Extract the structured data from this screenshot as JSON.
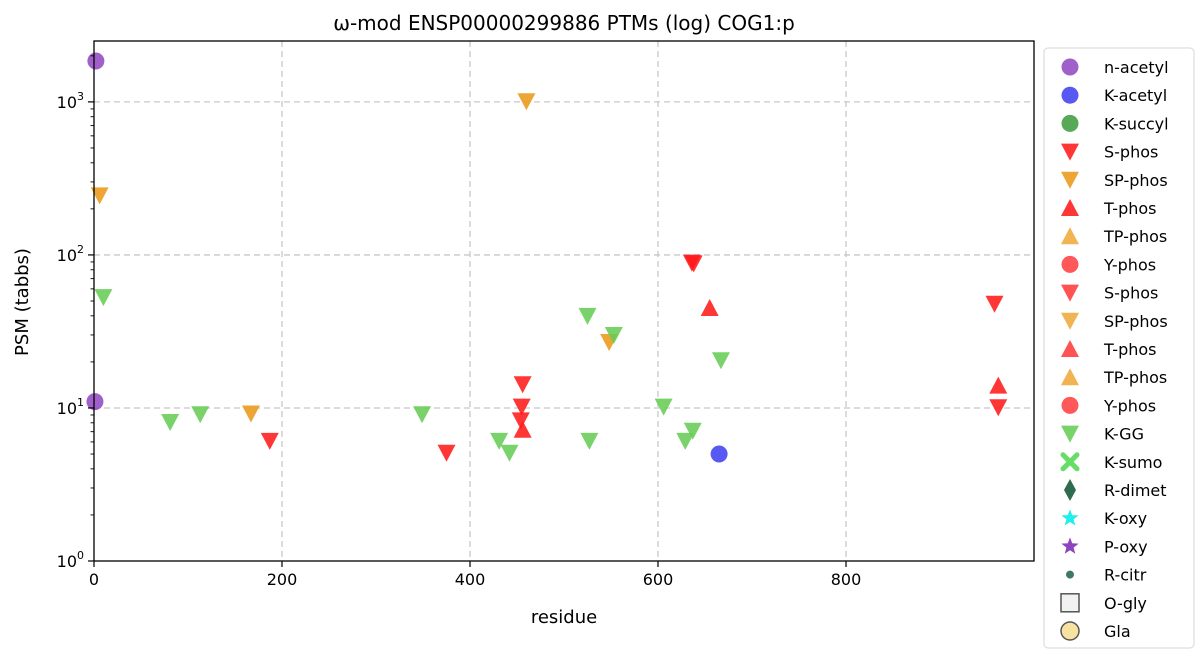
{
  "chart_data": {
    "type": "scatter",
    "title": "ω-mod ENSP00000299886 PTMs (log) COG1:p",
    "xlabel": "residue",
    "ylabel": "PSM (tabbs)",
    "xlim": [
      0,
      1000
    ],
    "ylim": [
      1,
      2500
    ],
    "yscale": "log",
    "grid": true,
    "legend_position": "outside-right",
    "x_ticks": [
      {
        "value": 0,
        "label": "0"
      },
      {
        "value": 200,
        "label": "200"
      },
      {
        "value": 400,
        "label": "400"
      },
      {
        "value": 600,
        "label": "600"
      },
      {
        "value": 800,
        "label": "800"
      }
    ],
    "y_ticks": [
      {
        "value": 1,
        "base": "10",
        "exp": "0"
      },
      {
        "value": 10,
        "base": "10",
        "exp": "1"
      },
      {
        "value": 100,
        "base": "10",
        "exp": "2"
      },
      {
        "value": 1000,
        "base": "10",
        "exp": "3"
      }
    ],
    "series": [
      {
        "name": "n-acetyl",
        "marker": "circle",
        "color": "#8e44bf",
        "points": [
          {
            "x": 2,
            "y": 1850
          },
          {
            "x": 1,
            "y": 11
          }
        ]
      },
      {
        "name": "K-acetyl",
        "marker": "circle",
        "color": "#3b3bf0",
        "points": [
          {
            "x": 665,
            "y": 5
          }
        ]
      },
      {
        "name": "K-succyl",
        "marker": "circle",
        "color": "#3a9a3a",
        "points": []
      },
      {
        "name": "S-phos",
        "marker": "triangle-down",
        "color": "#ff1a1a",
        "points": [
          {
            "x": 187,
            "y": 6.1
          },
          {
            "x": 375,
            "y": 5.1
          },
          {
            "x": 456,
            "y": 14.3
          },
          {
            "x": 455,
            "y": 10.2
          },
          {
            "x": 454,
            "y": 8.3
          },
          {
            "x": 636,
            "y": 89
          },
          {
            "x": 638,
            "y": 88
          },
          {
            "x": 958,
            "y": 48
          },
          {
            "x": 962,
            "y": 10.1
          }
        ]
      },
      {
        "name": "SP-phos",
        "marker": "triangle-down",
        "color": "#eb9a1a",
        "points": [
          {
            "x": 6,
            "y": 245
          },
          {
            "x": 460,
            "y": 1010
          },
          {
            "x": 167,
            "y": 9.2
          },
          {
            "x": 548,
            "y": 27
          }
        ]
      },
      {
        "name": "T-phos",
        "marker": "triangle-up",
        "color": "#ff1a1a",
        "points": [
          {
            "x": 655,
            "y": 45
          },
          {
            "x": 456,
            "y": 7.2
          },
          {
            "x": 962,
            "y": 14
          }
        ]
      },
      {
        "name": "TP-phos",
        "marker": "triangle-up",
        "color": "#eeaa3a",
        "points": []
      },
      {
        "name": "Y-phos",
        "marker": "circle",
        "color": "#ff3b3b",
        "points": []
      },
      {
        "name": "S-phos",
        "marker": "triangle-down",
        "color": "#ff3b3b",
        "points": []
      },
      {
        "name": "SP-phos",
        "marker": "triangle-down",
        "color": "#eeaa3a",
        "points": []
      },
      {
        "name": "T-phos",
        "marker": "triangle-up",
        "color": "#ff3b3b",
        "points": []
      },
      {
        "name": "TP-phos",
        "marker": "triangle-up",
        "color": "#eeaa3a",
        "points": []
      },
      {
        "name": "Y-phos",
        "marker": "circle",
        "color": "#ff3b3b",
        "points": []
      },
      {
        "name": "K-GG",
        "marker": "triangle-down",
        "color": "#66cc55",
        "points": [
          {
            "x": 10,
            "y": 53
          },
          {
            "x": 81,
            "y": 8.1
          },
          {
            "x": 113,
            "y": 9.1
          },
          {
            "x": 349,
            "y": 9.1
          },
          {
            "x": 431,
            "y": 6.1
          },
          {
            "x": 442,
            "y": 5.1
          },
          {
            "x": 525,
            "y": 40
          },
          {
            "x": 527,
            "y": 6.1
          },
          {
            "x": 553,
            "y": 30
          },
          {
            "x": 606,
            "y": 10.2
          },
          {
            "x": 629,
            "y": 6.1
          },
          {
            "x": 637,
            "y": 7.1
          },
          {
            "x": 667,
            "y": 20.5
          }
        ]
      },
      {
        "name": "K-sumo",
        "marker": "x",
        "color": "#66dd66",
        "points": []
      },
      {
        "name": "R-dimet",
        "marker": "diamond",
        "color": "#2e6b4f",
        "points": []
      },
      {
        "name": "K-oxy",
        "marker": "star",
        "color": "#22eeee",
        "points": []
      },
      {
        "name": "P-oxy",
        "marker": "star",
        "color": "#8e44bf",
        "points": []
      },
      {
        "name": "R-citr",
        "marker": "small-circle",
        "color": "#3d7a5f",
        "points": []
      },
      {
        "name": "O-gly",
        "marker": "square-open",
        "color": "#555555",
        "points": []
      },
      {
        "name": "Gla",
        "marker": "circle-open",
        "color": "#555555",
        "points": []
      }
    ]
  }
}
